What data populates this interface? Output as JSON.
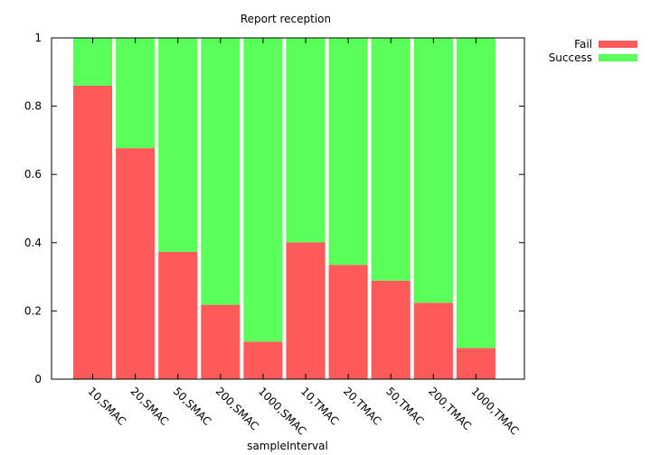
{
  "chart_data": {
    "type": "bar",
    "stacked": true,
    "title": "Report reception",
    "xlabel": "sampleInterval",
    "ylabel": "",
    "ylim": [
      0,
      1
    ],
    "yticks": [
      "0",
      "0.2",
      "0.4",
      "0.6",
      "0.8",
      "1"
    ],
    "categories": [
      "10,SMAC",
      "20,SMAC",
      "50,SMAC",
      "200,SMAC",
      "1000,SMAC",
      "10,TMAC",
      "20,TMAC",
      "50,TMAC",
      "200,TMAC",
      "1000,TMAC"
    ],
    "series": [
      {
        "name": "Fail",
        "color": "#ff5a5a",
        "values": [
          0.86,
          0.677,
          0.373,
          0.218,
          0.11,
          0.401,
          0.335,
          0.289,
          0.224,
          0.091
        ]
      },
      {
        "name": "Success",
        "color": "#5aff5a",
        "values": [
          0.14,
          0.323,
          0.627,
          0.782,
          0.89,
          0.599,
          0.665,
          0.711,
          0.776,
          0.909
        ]
      }
    ],
    "legend_position": "top-right",
    "grid": false
  }
}
